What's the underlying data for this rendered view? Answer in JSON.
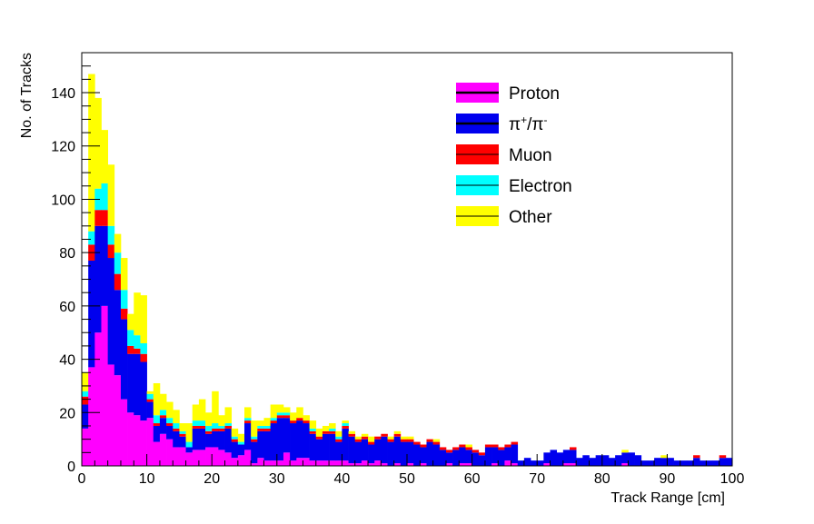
{
  "chart_data": {
    "type": "bar",
    "stacked": true,
    "histogram": true,
    "xlabel": "Track Range [cm]",
    "ylabel": "No. of Tracks",
    "xlim": [
      0,
      100
    ],
    "ylim": [
      0,
      155
    ],
    "bin_width": 1,
    "x_ticks": [
      "0",
      "10",
      "20",
      "30",
      "40",
      "50",
      "60",
      "70",
      "80",
      "90",
      "100"
    ],
    "y_ticks": [
      "0",
      "20",
      "40",
      "60",
      "80",
      "100",
      "120",
      "140"
    ],
    "legend_position": "top-right",
    "grid": false,
    "series": [
      {
        "name": "Proton",
        "color": "#ff00ff",
        "values": [
          14,
          37,
          50,
          60,
          38,
          34,
          25,
          20,
          19,
          17,
          18,
          9,
          12,
          10,
          7,
          7,
          5,
          6,
          6,
          7,
          7,
          6,
          5,
          3,
          4,
          6,
          1,
          3,
          2,
          2,
          2,
          5,
          2,
          3,
          3,
          2,
          2,
          2,
          2,
          2,
          2,
          1,
          1,
          2,
          1,
          2,
          1,
          0,
          1,
          0,
          1,
          0,
          1,
          0,
          0,
          0,
          1,
          0,
          1,
          1,
          0,
          0,
          0,
          1,
          0,
          2,
          1,
          0,
          0,
          0,
          0,
          1,
          0,
          0,
          1,
          1,
          0,
          0,
          0,
          0,
          0,
          0,
          0,
          1,
          0,
          0,
          0,
          0,
          0,
          0,
          0,
          0,
          0,
          0,
          0,
          0,
          0,
          0,
          0,
          0
        ]
      },
      {
        "name": "π⁺/π⁻",
        "label_main": "π",
        "label_sup1": "+",
        "label_mid": "/π",
        "label_sup2": "-",
        "color": "#0000ee",
        "values": [
          9,
          40,
          40,
          30,
          40,
          32,
          30,
          22,
          23,
          22,
          6,
          6,
          6,
          5,
          6,
          4,
          2,
          8,
          8,
          5,
          6,
          7,
          9,
          6,
          4,
          10,
          8,
          10,
          11,
          14,
          16,
          13,
          14,
          14,
          13,
          10,
          8,
          10,
          10,
          7,
          12,
          10,
          8,
          8,
          7,
          8,
          10,
          9,
          10,
          9,
          8,
          8,
          6,
          9,
          8,
          6,
          4,
          6,
          6,
          5,
          5,
          4,
          7,
          6,
          6,
          5,
          7,
          2,
          3,
          2,
          2,
          4,
          6,
          5,
          5,
          5,
          3,
          4,
          3,
          4,
          4,
          3,
          4,
          4,
          5,
          4,
          2,
          2,
          3,
          3,
          3,
          2,
          2,
          2,
          3,
          2,
          2,
          2,
          3,
          3
        ]
      },
      {
        "name": "Muon",
        "color": "#ff0000",
        "values": [
          3,
          6,
          6,
          6,
          5,
          6,
          4,
          3,
          2,
          3,
          1,
          1,
          1,
          1,
          1,
          1,
          0,
          1,
          1,
          1,
          1,
          1,
          1,
          1,
          0,
          1,
          1,
          1,
          1,
          1,
          1,
          1,
          1,
          1,
          1,
          1,
          1,
          1,
          1,
          1,
          1,
          1,
          1,
          1,
          1,
          1,
          1,
          1,
          1,
          1,
          1,
          1,
          1,
          1,
          1,
          1,
          1,
          1,
          1,
          1,
          1,
          1,
          1,
          1,
          1,
          1,
          1,
          0,
          0,
          0,
          0,
          0,
          0,
          0,
          0,
          1,
          0,
          0,
          0,
          0,
          0,
          0,
          0,
          0,
          0,
          0,
          0,
          0,
          0,
          0,
          0,
          0,
          0,
          0,
          1,
          0,
          0,
          0,
          1,
          0
        ]
      },
      {
        "name": "Electron",
        "color": "#00ffff",
        "values": [
          2,
          5,
          8,
          10,
          7,
          8,
          7,
          6,
          5,
          4,
          2,
          3,
          2,
          2,
          2,
          1,
          2,
          2,
          2,
          2,
          2,
          1,
          1,
          1,
          1,
          1,
          1,
          1,
          1,
          1,
          1,
          1,
          0,
          0,
          0,
          1,
          0,
          0,
          1,
          1,
          1,
          0,
          0,
          0,
          0,
          0,
          0,
          0,
          0,
          0,
          0,
          0,
          0,
          0,
          0,
          0,
          0,
          0,
          0,
          0,
          0,
          0,
          0,
          0,
          0,
          0,
          0,
          0,
          0,
          0,
          0,
          0,
          0,
          0,
          0,
          0,
          0,
          0,
          0,
          0,
          0,
          0,
          0,
          0,
          0,
          0,
          0,
          0,
          0,
          0,
          0,
          0,
          0,
          0,
          0,
          0,
          0,
          0,
          0,
          0
        ]
      },
      {
        "name": "Other",
        "color": "#ffff00",
        "values": [
          7,
          59,
          34,
          20,
          23,
          7,
          12,
          6,
          16,
          18,
          1,
          12,
          6,
          6,
          5,
          3,
          7,
          6,
          8,
          5,
          12,
          4,
          6,
          3,
          3,
          4,
          6,
          2,
          3,
          5,
          3,
          2,
          3,
          4,
          2,
          3,
          3,
          2,
          2,
          2,
          1,
          1,
          1,
          1,
          2,
          0,
          0,
          1,
          1,
          1,
          1,
          0,
          0,
          0,
          1,
          0,
          0,
          0,
          0,
          1,
          0,
          0,
          0,
          0,
          0,
          0,
          0,
          0,
          0,
          0,
          0,
          0,
          0,
          0,
          0,
          0,
          0,
          0,
          0,
          0,
          0,
          0,
          0,
          1,
          0,
          0,
          0,
          0,
          0,
          1,
          0,
          0,
          0,
          0,
          0,
          0,
          0,
          0,
          0,
          0
        ]
      }
    ]
  }
}
